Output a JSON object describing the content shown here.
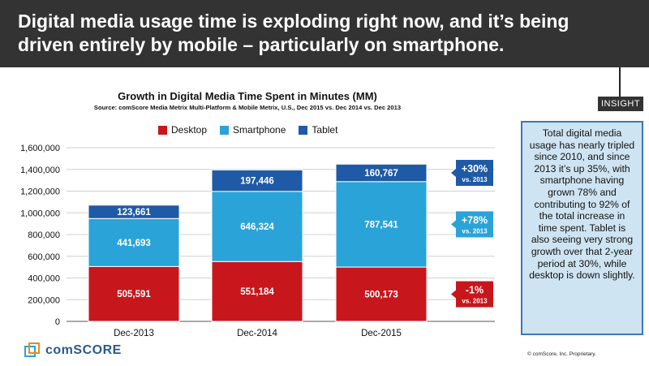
{
  "header": {
    "headline": "Digital media usage time is exploding right now, and it’s being driven entirely by mobile – particularly on smartphone."
  },
  "insight": {
    "label": "INSIGHT",
    "text": "Total digital media usage has nearly tripled since 2010, and since 2013 it’s up 35%, with smartphone having grown 78% and contributing to 92% of the total increase in time spent. Tablet is also seeing very strong growth over that 2-year period at 30%, while desktop is down slightly."
  },
  "footer": {
    "logo_text": "comSCORE",
    "copyright": "© comScore, Inc. Proprietary."
  },
  "colors": {
    "desktop": "#c8161d",
    "smartphone": "#2aa3d8",
    "tablet": "#1f5aa6",
    "header_bg": "#333333",
    "insight_bg": "#cfe4f2",
    "insight_border": "#3a78b8"
  },
  "chart_data": {
    "type": "bar",
    "stacked": true,
    "title": "Growth in Digital Media Time Spent in Minutes (MM)",
    "subtitle": "Source: comScore Media Metrix Multi-Platform & Mobile Metrix, U.S., Dec 2015 vs. Dec 2014 vs. Dec 2013",
    "categories": [
      "Dec-2013",
      "Dec-2014",
      "Dec-2015"
    ],
    "series": [
      {
        "name": "Desktop",
        "values": [
          505591,
          551184,
          500173
        ],
        "labels": [
          "505,591",
          "551,184",
          "500,173"
        ]
      },
      {
        "name": "Smartphone",
        "values": [
          441693,
          646324,
          787541
        ],
        "labels": [
          "441,693",
          "646,324",
          "787,541"
        ]
      },
      {
        "name": "Tablet",
        "values": [
          123661,
          197446,
          160767
        ],
        "labels": [
          "123,661",
          "197,446",
          "160,767"
        ]
      }
    ],
    "ylim": [
      0,
      1600000
    ],
    "yticks": [
      0,
      200000,
      400000,
      600000,
      800000,
      1000000,
      1200000,
      1400000,
      1600000
    ],
    "ytick_labels": [
      "0",
      "200,000",
      "400,000",
      "600,000",
      "800,000",
      "1,000,000",
      "1,200,000",
      "1,400,000",
      "1,600,000"
    ],
    "grid": true,
    "legend_position": "top",
    "callouts": [
      {
        "series": "Tablet",
        "big": "+30%",
        "small": "vs. 2013"
      },
      {
        "series": "Smartphone",
        "big": "+78%",
        "small": "vs. 2013"
      },
      {
        "series": "Desktop",
        "big": "-1%",
        "small": "vs. 2013"
      }
    ]
  }
}
